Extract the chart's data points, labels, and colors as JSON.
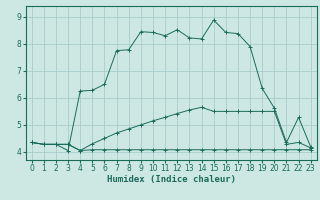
{
  "xlabel": "Humidex (Indice chaleur)",
  "background_color": "#cde8e3",
  "grid_color": "#a8ccca",
  "line_color": "#1a6b5a",
  "xlim": [
    -0.5,
    23.5
  ],
  "ylim": [
    3.7,
    9.4
  ],
  "xticks": [
    0,
    1,
    2,
    3,
    4,
    5,
    6,
    7,
    8,
    9,
    10,
    11,
    12,
    13,
    14,
    15,
    16,
    17,
    18,
    19,
    20,
    21,
    22,
    23
  ],
  "yticks": [
    4,
    5,
    6,
    7,
    8,
    9
  ],
  "series1_x": [
    0,
    1,
    2,
    3,
    4,
    5,
    6,
    7,
    8,
    9,
    10,
    11,
    12,
    13,
    14,
    15,
    16,
    17,
    18,
    19,
    20,
    21,
    22,
    23
  ],
  "series1_y": [
    4.35,
    4.28,
    4.28,
    4.28,
    4.05,
    4.08,
    4.08,
    4.08,
    4.08,
    4.08,
    4.08,
    4.08,
    4.08,
    4.08,
    4.08,
    4.08,
    4.08,
    4.08,
    4.08,
    4.08,
    4.08,
    4.08,
    4.08,
    4.08
  ],
  "series2_x": [
    0,
    1,
    2,
    3,
    4,
    5,
    6,
    7,
    8,
    9,
    10,
    11,
    12,
    13,
    14,
    15,
    16,
    17,
    18,
    19,
    20,
    21,
    22,
    23
  ],
  "series2_y": [
    4.35,
    4.28,
    4.28,
    4.28,
    4.05,
    4.3,
    4.5,
    4.7,
    4.85,
    5.0,
    5.15,
    5.28,
    5.42,
    5.55,
    5.65,
    5.5,
    5.5,
    5.5,
    5.5,
    5.5,
    5.5,
    4.28,
    4.35,
    4.15
  ],
  "series3_x": [
    0,
    1,
    2,
    3,
    4,
    5,
    6,
    7,
    8,
    9,
    10,
    11,
    12,
    13,
    14,
    15,
    16,
    17,
    18,
    19,
    20,
    21,
    22,
    23
  ],
  "series3_y": [
    4.35,
    4.28,
    4.28,
    4.05,
    6.25,
    6.28,
    6.5,
    7.75,
    7.78,
    8.45,
    8.42,
    8.3,
    8.52,
    8.22,
    8.18,
    8.88,
    8.42,
    8.38,
    7.9,
    6.35,
    5.62,
    4.35,
    5.28,
    4.18
  ]
}
